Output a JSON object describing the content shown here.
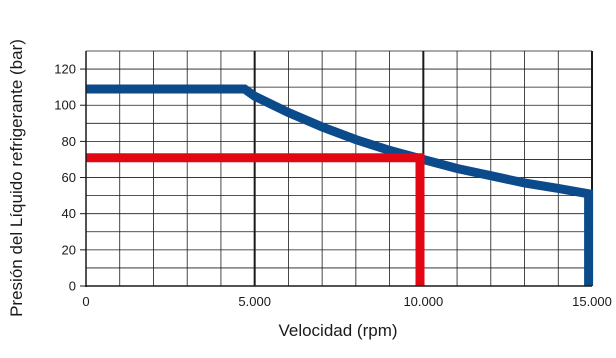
{
  "chart_data": {
    "type": "line",
    "title": "",
    "xlabel": "Velocidad (rpm)",
    "ylabel": "Presión del Líquido refrigerante (bar)",
    "xlim": [
      0,
      15000
    ],
    "ylim": [
      0,
      130
    ],
    "x_tick_values": [
      0,
      5000,
      10000,
      15000
    ],
    "x_tick_labels": [
      "0",
      "5.000",
      "10.000",
      "15.000"
    ],
    "y_tick_values": [
      0,
      20,
      40,
      60,
      80,
      100,
      120
    ],
    "y_tick_labels": [
      "0",
      "20",
      "40",
      "60",
      "80",
      "100",
      "120"
    ],
    "grid": true,
    "legend": "none",
    "series": [
      {
        "color": "#0b4a8b",
        "x": [
          0,
          4700,
          5000,
          6000,
          7000,
          8000,
          9000,
          10000,
          11000,
          12000,
          13000,
          14000,
          14900,
          14900
        ],
        "y": [
          109,
          109,
          105,
          96,
          88,
          81,
          75,
          70,
          65,
          61,
          57,
          54,
          51,
          0
        ]
      },
      {
        "color": "#e30613",
        "x": [
          0,
          9900,
          9900
        ],
        "y": [
          71,
          71,
          0
        ]
      }
    ]
  }
}
